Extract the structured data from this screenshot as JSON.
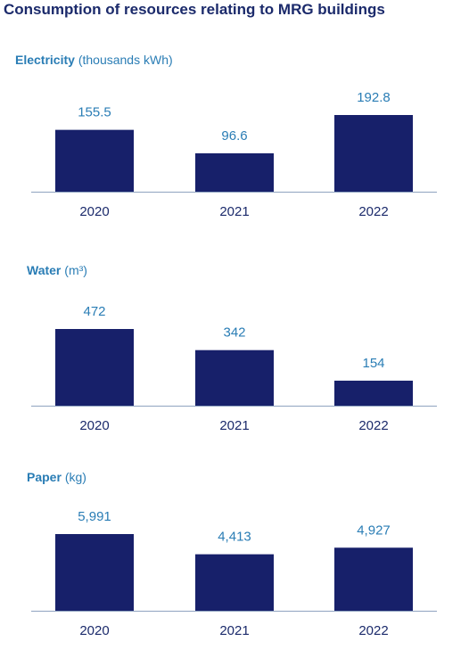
{
  "title": "Consumption of resources relating to MRG buildings",
  "colors": {
    "bar": "#17206a",
    "axis": "#8fa3c0",
    "value_label": "#2a7db5",
    "heading": "#2a7db5",
    "title": "#1b2a6b"
  },
  "chart_data": [
    {
      "type": "bar",
      "heading": "Electricity",
      "unit": "(thousands kWh)",
      "categories": [
        "2020",
        "2021",
        "2022"
      ],
      "values": [
        155.5,
        96.6,
        192.8
      ],
      "value_labels": [
        "155.5",
        "96.6",
        "192.8"
      ]
    },
    {
      "type": "bar",
      "heading": "Water",
      "unit": "(m³)",
      "categories": [
        "2020",
        "2021",
        "2022"
      ],
      "values": [
        472,
        342,
        154
      ],
      "value_labels": [
        "472",
        "342",
        "154"
      ]
    },
    {
      "type": "bar",
      "heading": "Paper",
      "unit": "(kg)",
      "categories": [
        "2020",
        "2021",
        "2022"
      ],
      "values": [
        5991,
        4413,
        4927
      ],
      "value_labels": [
        "5,991",
        "4,413",
        "4,927"
      ]
    }
  ]
}
